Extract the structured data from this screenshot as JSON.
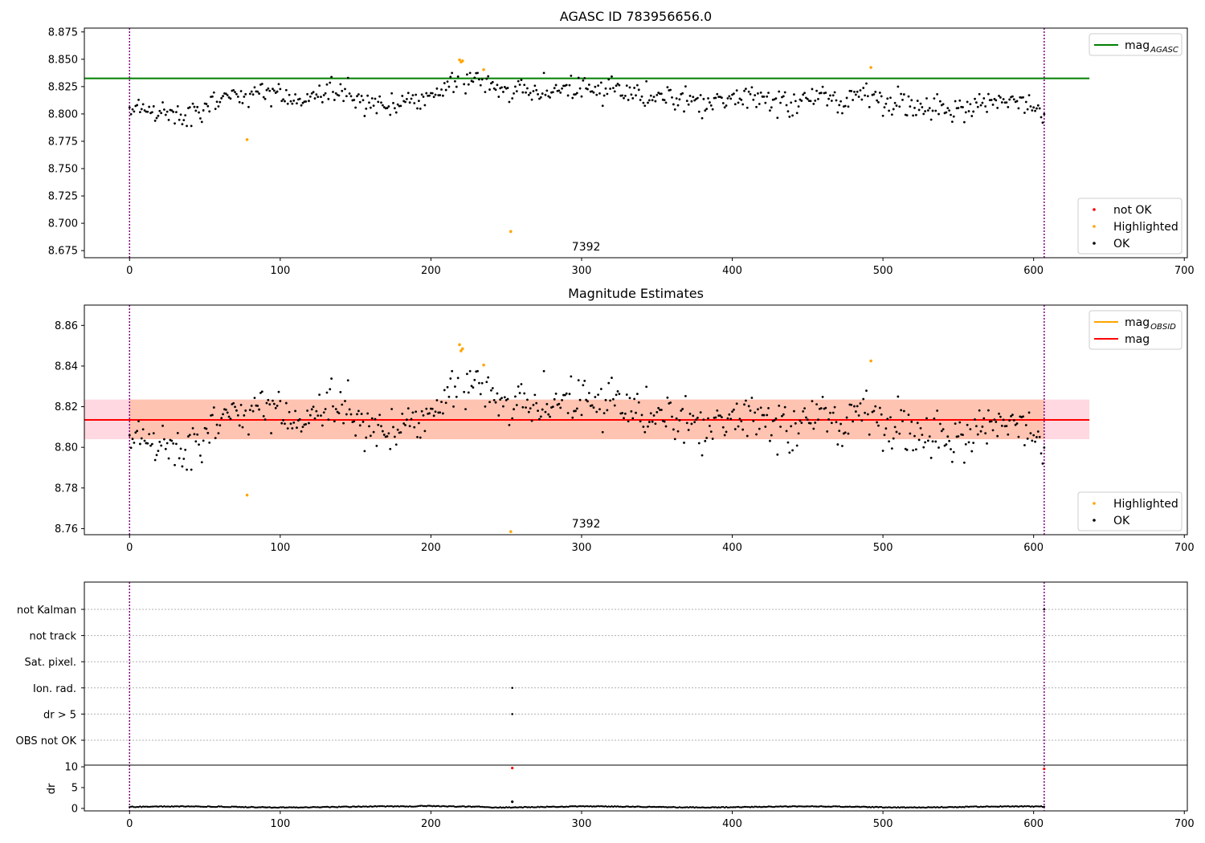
{
  "figure": {
    "background": "#ffffff"
  },
  "colors": {
    "ok": "#000000",
    "highlighted": "#ffa500",
    "not_ok": "#ff0000",
    "mag_agasc": "#008000",
    "mag": "#ff0000",
    "mag_obsid": "#ffa500",
    "band_inner": "#ffc0a8",
    "band_outer": "#ffd1dc",
    "vline": "#800080",
    "grid": "#b0b0b0"
  },
  "chart_data": [
    {
      "id": "agasc",
      "type": "scatter",
      "title": "AGASC ID 783956656.0",
      "xlim": [
        -30,
        702
      ],
      "ylim": [
        8.6685,
        8.8785
      ],
      "x_ticks": [
        0,
        100,
        200,
        300,
        400,
        500,
        600,
        700
      ],
      "y_ticks": [
        8.675,
        8.7,
        8.725,
        8.75,
        8.775,
        8.8,
        8.825,
        8.85,
        8.875
      ],
      "y_tick_labels": [
        "8.675",
        "8.700",
        "8.725",
        "8.750",
        "8.775",
        "8.800",
        "8.825",
        "8.850",
        "8.875"
      ],
      "obsid_label": "7392",
      "obsid_label_x": 303,
      "obsid_range": [
        0,
        607
      ],
      "hlines": [
        {
          "y": 8.8325,
          "x0": -30,
          "x1": 637,
          "color": "#008000"
        }
      ],
      "legends": [
        {
          "position": "upper-right",
          "items": [
            {
              "label": "mag",
              "sub": "AGASC",
              "kind": "line",
              "color": "#008000"
            }
          ]
        },
        {
          "position": "lower-right",
          "items": [
            {
              "label": "not OK",
              "kind": "dot",
              "color": "#ff0000"
            },
            {
              "label": "Highlighted",
              "kind": "dot",
              "color": "#ffa500"
            },
            {
              "label": "OK",
              "kind": "dot",
              "color": "#000000"
            }
          ]
        }
      ],
      "series": [
        {
          "name": "Highlighted",
          "color": "#ffa500",
          "points": [
            [
              78,
              8.7765
            ],
            [
              219,
              8.8495
            ],
            [
              220,
              8.8475
            ],
            [
              221,
              8.8485
            ],
            [
              235,
              8.8405
            ],
            [
              253,
              8.6925
            ],
            [
              492,
              8.8425
            ]
          ]
        }
      ]
    },
    {
      "id": "estimates",
      "type": "scatter",
      "title": "Magnitude Estimates",
      "xlim": [
        -30,
        702
      ],
      "ylim": [
        8.757,
        8.87
      ],
      "x_ticks": [
        0,
        100,
        200,
        300,
        400,
        500,
        600,
        700
      ],
      "y_ticks": [
        8.76,
        8.78,
        8.8,
        8.82,
        8.84,
        8.86
      ],
      "y_tick_labels": [
        "8.76",
        "8.78",
        "8.80",
        "8.82",
        "8.84",
        "8.86"
      ],
      "obsid_label": "7392",
      "obsid_label_x": 303,
      "obsid_range": [
        0,
        607
      ],
      "hlines": [
        {
          "y": 8.8135,
          "x0": -30,
          "x1": 637,
          "color": "#ff0000"
        }
      ],
      "bands": [
        {
          "y0": 8.804,
          "y1": 8.8235,
          "x0": -30,
          "x1": 637,
          "color": "#ffd1dc"
        },
        {
          "y0": 8.804,
          "y1": 8.8235,
          "x0": 0,
          "x1": 607,
          "color": "#ffc0a8"
        }
      ],
      "legends": [
        {
          "position": "upper-right",
          "items": [
            {
              "label": "mag",
              "sub": "OBSID",
              "kind": "line",
              "color": "#ffa500"
            },
            {
              "label": "mag",
              "kind": "line",
              "color": "#ff0000"
            }
          ]
        },
        {
          "position": "lower-right",
          "items": [
            {
              "label": "Highlighted",
              "kind": "dot",
              "color": "#ffa500"
            },
            {
              "label": "OK",
              "kind": "dot",
              "color": "#000000"
            }
          ]
        }
      ],
      "series": [
        {
          "name": "Highlighted",
          "color": "#ffa500",
          "points": [
            [
              78,
              8.7765
            ],
            [
              219,
              8.8505
            ],
            [
              220,
              8.8475
            ],
            [
              221,
              8.8485
            ],
            [
              235,
              8.8405
            ],
            [
              253,
              8.7585
            ],
            [
              492,
              8.8425
            ]
          ]
        }
      ]
    },
    {
      "id": "flags",
      "type": "scatter",
      "xlim": [
        -30,
        702
      ],
      "categories": [
        "not Kalman",
        "not track",
        "Sat. pixel.",
        "Ion. rad.",
        "dr > 5",
        "OBS not OK"
      ],
      "obsid_range": [
        0,
        607
      ],
      "series": [
        {
          "name": "not Kalman",
          "color": "#000000",
          "points": [
            [
              607,
              0
            ]
          ]
        },
        {
          "name": "Ion. rad.",
          "color": "#000000",
          "points": [
            [
              254,
              3
            ]
          ]
        },
        {
          "name": "dr > 5",
          "color": "#000000",
          "points": [
            [
              254,
              4
            ]
          ]
        }
      ]
    },
    {
      "id": "dr",
      "type": "scatter",
      "ylabel": "dr",
      "xlim": [
        -30,
        702
      ],
      "ylim": [
        -0.6,
        10.4
      ],
      "x_ticks": [
        0,
        100,
        200,
        300,
        400,
        500,
        600,
        700
      ],
      "x_tick_labels": [
        "0",
        "100",
        "200",
        "300",
        "400",
        "500",
        "600",
        "700"
      ],
      "y_ticks": [
        0,
        5,
        10
      ],
      "y_tick_labels": [
        "0",
        "5",
        "10"
      ],
      "obsid_range": [
        0,
        607
      ],
      "series": [
        {
          "name": "dr > 5",
          "color": "#ff0000",
          "points": [
            [
              254,
              9.7
            ],
            [
              607,
              9.5
            ]
          ]
        },
        {
          "name": "outlier",
          "color": "#000000",
          "points": [
            [
              254,
              1.6
            ]
          ]
        }
      ]
    }
  ]
}
